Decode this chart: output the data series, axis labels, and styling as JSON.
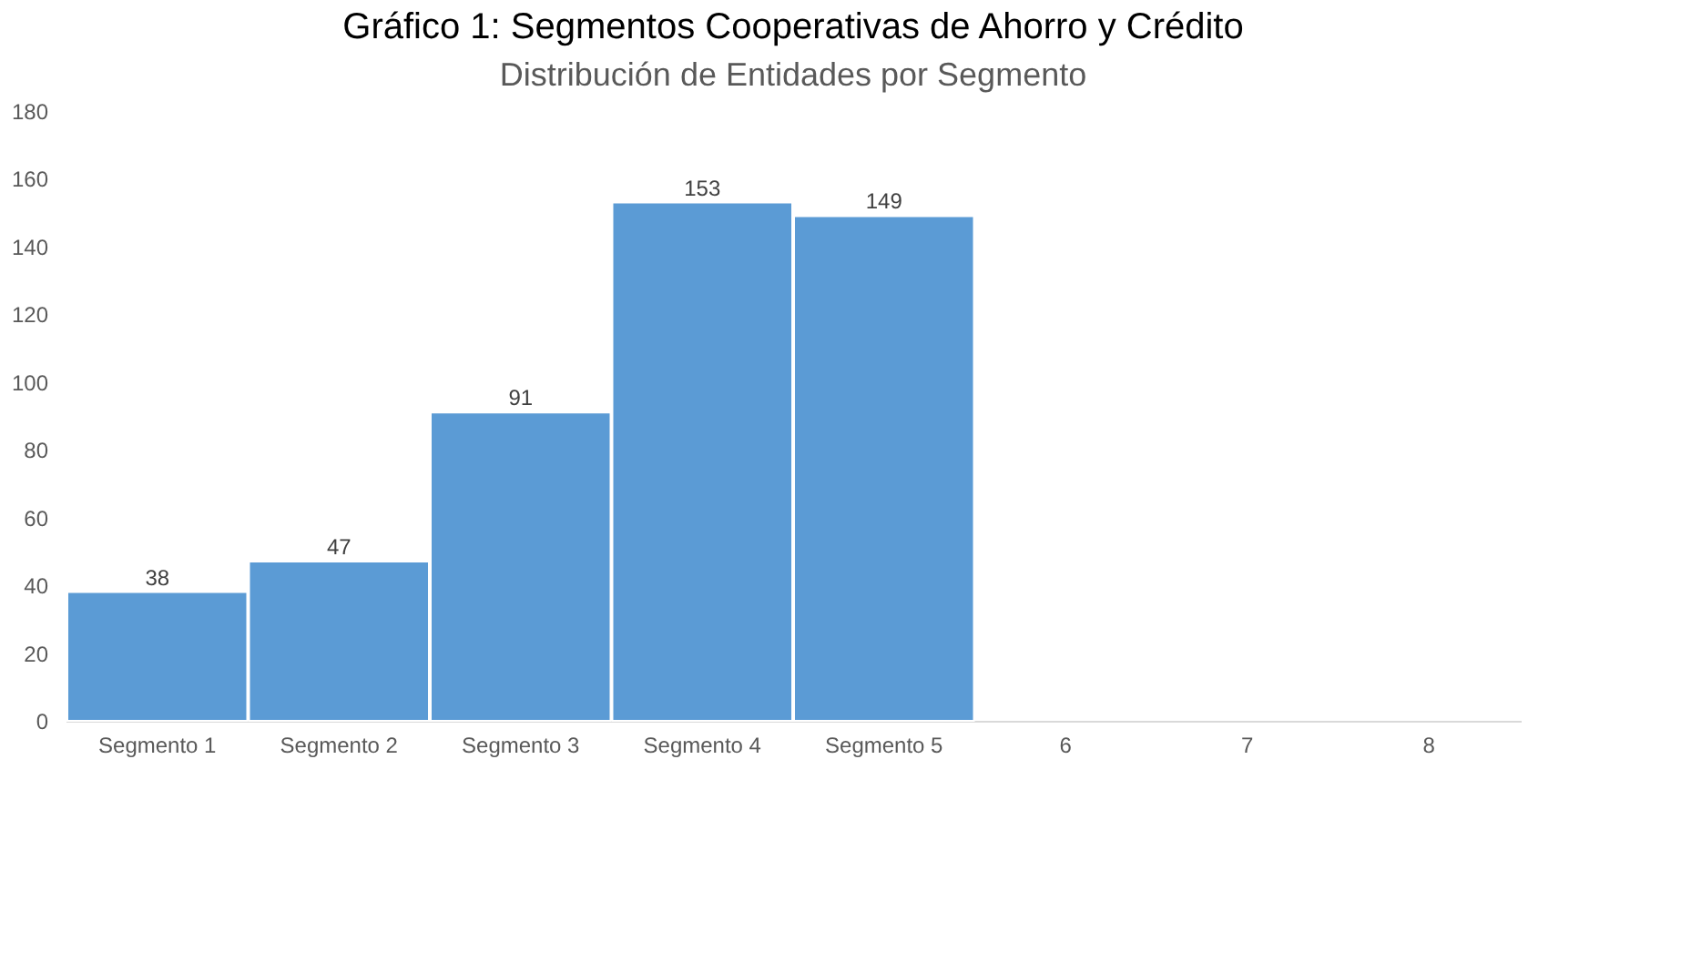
{
  "chart_data": {
    "type": "bar",
    "title": "Gráfico 1: Segmentos Cooperativas de Ahorro y Crédito",
    "subtitle": "Distribución de Entidades por Segmento",
    "categories": [
      "Segmento 1",
      "Segmento 2",
      "Segmento 3",
      "Segmento 4",
      "Segmento 5",
      "6",
      "7",
      "8"
    ],
    "values": [
      38,
      47,
      91,
      153,
      149,
      null,
      null,
      null
    ],
    "color": "#5b9bd5",
    "ylim": [
      0,
      180
    ],
    "yticks": [
      0,
      20,
      40,
      60,
      80,
      100,
      120,
      140,
      160,
      180
    ],
    "grid": false,
    "data_labels": true
  }
}
